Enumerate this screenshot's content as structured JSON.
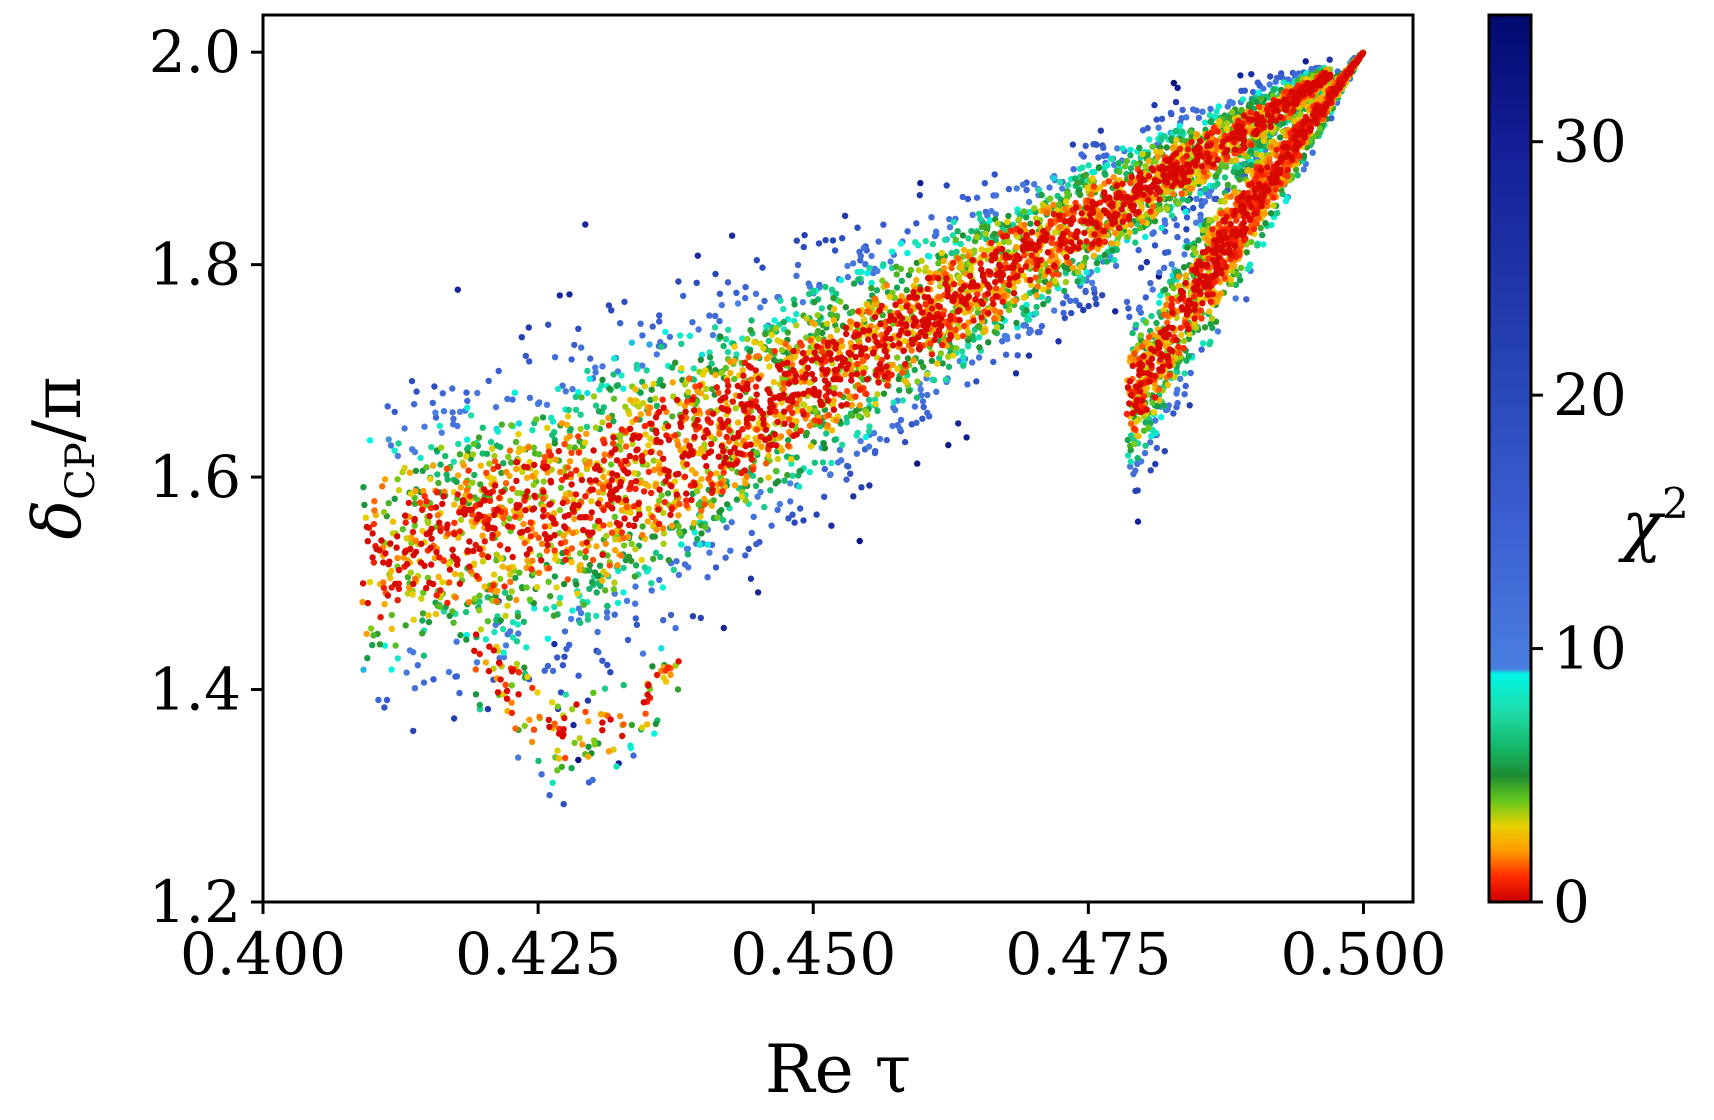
{
  "chart_data": {
    "type": "scatter",
    "title": "",
    "xlabel": "Re τ",
    "ylabel": "δ_CP/π",
    "ylabel_main": "δ",
    "ylabel_sub": "CP",
    "ylabel_rest": "/π",
    "xlim": [
      0.4,
      0.5045
    ],
    "ylim": [
      1.2,
      2.035
    ],
    "x_ticks": [
      0.4,
      0.425,
      0.45,
      0.475,
      0.5
    ],
    "x_tick_labels": [
      "0.400",
      "0.425",
      "0.450",
      "0.475",
      "0.500"
    ],
    "y_ticks": [
      1.2,
      1.4,
      1.6,
      1.8,
      2.0
    ],
    "y_tick_labels": [
      "1.2",
      "1.4",
      "1.6",
      "1.8",
      "2.0"
    ],
    "grid": false,
    "colorbar": {
      "label": "χ",
      "label_exp": "2",
      "min": 0,
      "max": 35,
      "ticks": [
        0,
        10,
        20,
        30
      ],
      "tick_labels": [
        "0",
        "10",
        "20",
        "30"
      ],
      "stops": [
        {
          "value": 0,
          "color": "#cc0000"
        },
        {
          "value": 1.0,
          "color": "#ff2a00"
        },
        {
          "value": 2.0,
          "color": "#ff9a00"
        },
        {
          "value": 3.0,
          "color": "#e8d000"
        },
        {
          "value": 4.0,
          "color": "#64c81e"
        },
        {
          "value": 5.0,
          "color": "#1e8c32"
        },
        {
          "value": 6.0,
          "color": "#14b464"
        },
        {
          "value": 7.5,
          "color": "#1edcaa"
        },
        {
          "value": 9.0,
          "color": "#00f5e6"
        },
        {
          "value": 9.2,
          "color": "#4a7ee0"
        },
        {
          "value": 15.0,
          "color": "#3a5fd0"
        },
        {
          "value": 22.0,
          "color": "#2440b0"
        },
        {
          "value": 30.0,
          "color": "#141e96"
        },
        {
          "value": 35.0,
          "color": "#000a6e"
        }
      ]
    },
    "regions": [
      {
        "name": "main branch",
        "x_range": [
          0.409,
          0.497
        ],
        "center_line": [
          [
            0.409,
            1.52
          ],
          [
            0.43,
            1.58
          ],
          [
            0.45,
            1.69
          ],
          [
            0.47,
            1.81
          ],
          [
            0.49,
            1.93
          ],
          [
            0.5,
            2.0
          ]
        ],
        "half_width": [
          [
            0.409,
            0.12
          ],
          [
            0.43,
            0.14
          ],
          [
            0.45,
            0.1
          ],
          [
            0.47,
            0.07
          ],
          [
            0.49,
            0.035
          ],
          [
            0.5,
            0.0
          ]
        ]
      },
      {
        "name": "upper branch tail",
        "x_range": [
          0.419,
          0.438
        ],
        "center_line": [
          [
            0.419,
            1.44
          ],
          [
            0.426,
            1.36
          ],
          [
            0.432,
            1.37
          ],
          [
            0.438,
            1.42
          ]
        ],
        "half_width": [
          [
            0.419,
            0.06
          ],
          [
            0.438,
            0.05
          ]
        ]
      },
      {
        "name": "secondary branch",
        "x_range": [
          0.4785,
          0.5
        ],
        "center_line": [
          [
            0.4795,
            1.68
          ],
          [
            0.485,
            1.78
          ],
          [
            0.49,
            1.86
          ],
          [
            0.5,
            2.0
          ]
        ],
        "half_width": [
          [
            0.4795,
            0.075
          ],
          [
            0.485,
            0.07
          ],
          [
            0.49,
            0.05
          ],
          [
            0.5,
            0.0
          ]
        ]
      }
    ]
  }
}
